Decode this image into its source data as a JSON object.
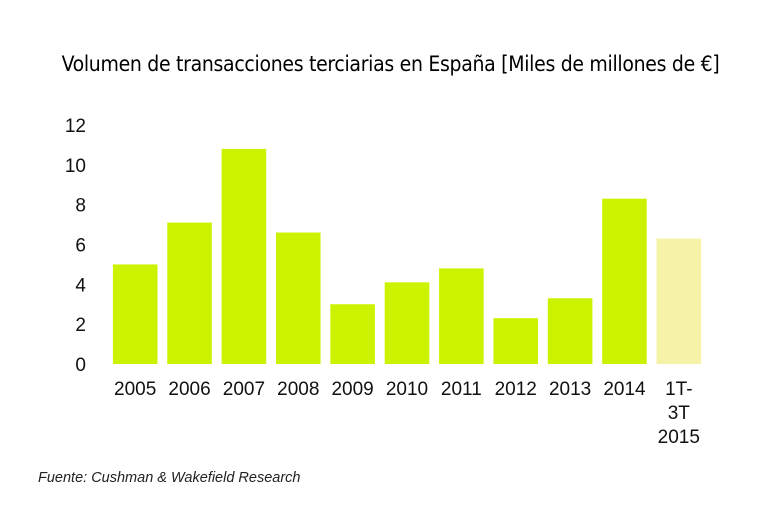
{
  "chart_data": {
    "type": "bar",
    "title": "Volumen de transacciones terciarias en España [Miles de millones de €]",
    "categories": [
      "2005",
      "2006",
      "2007",
      "2008",
      "2009",
      "2010",
      "2011",
      "2012",
      "2013",
      "2014",
      "1T-3T 2015"
    ],
    "category_lines": [
      [
        "2005"
      ],
      [
        "2006"
      ],
      [
        "2007"
      ],
      [
        "2008"
      ],
      [
        "2009"
      ],
      [
        "2010"
      ],
      [
        "2011"
      ],
      [
        "2012"
      ],
      [
        "2013"
      ],
      [
        "2014"
      ],
      [
        "1T-",
        "3T",
        "2015"
      ]
    ],
    "values": [
      5.0,
      7.1,
      10.8,
      6.6,
      3.0,
      4.1,
      4.8,
      2.3,
      3.3,
      8.3,
      6.3
    ],
    "ylim": [
      0,
      12
    ],
    "yticks": [
      0,
      2,
      4,
      6,
      8,
      10,
      12
    ],
    "grid": false,
    "legend": "none",
    "xlabel": "",
    "ylabel": "",
    "colors": {
      "bar": "#ccf200",
      "bar_highlight": "#f6f3a8"
    },
    "highlight_index": 10
  },
  "source": "Fuente: Cushman & Wakefield Research"
}
